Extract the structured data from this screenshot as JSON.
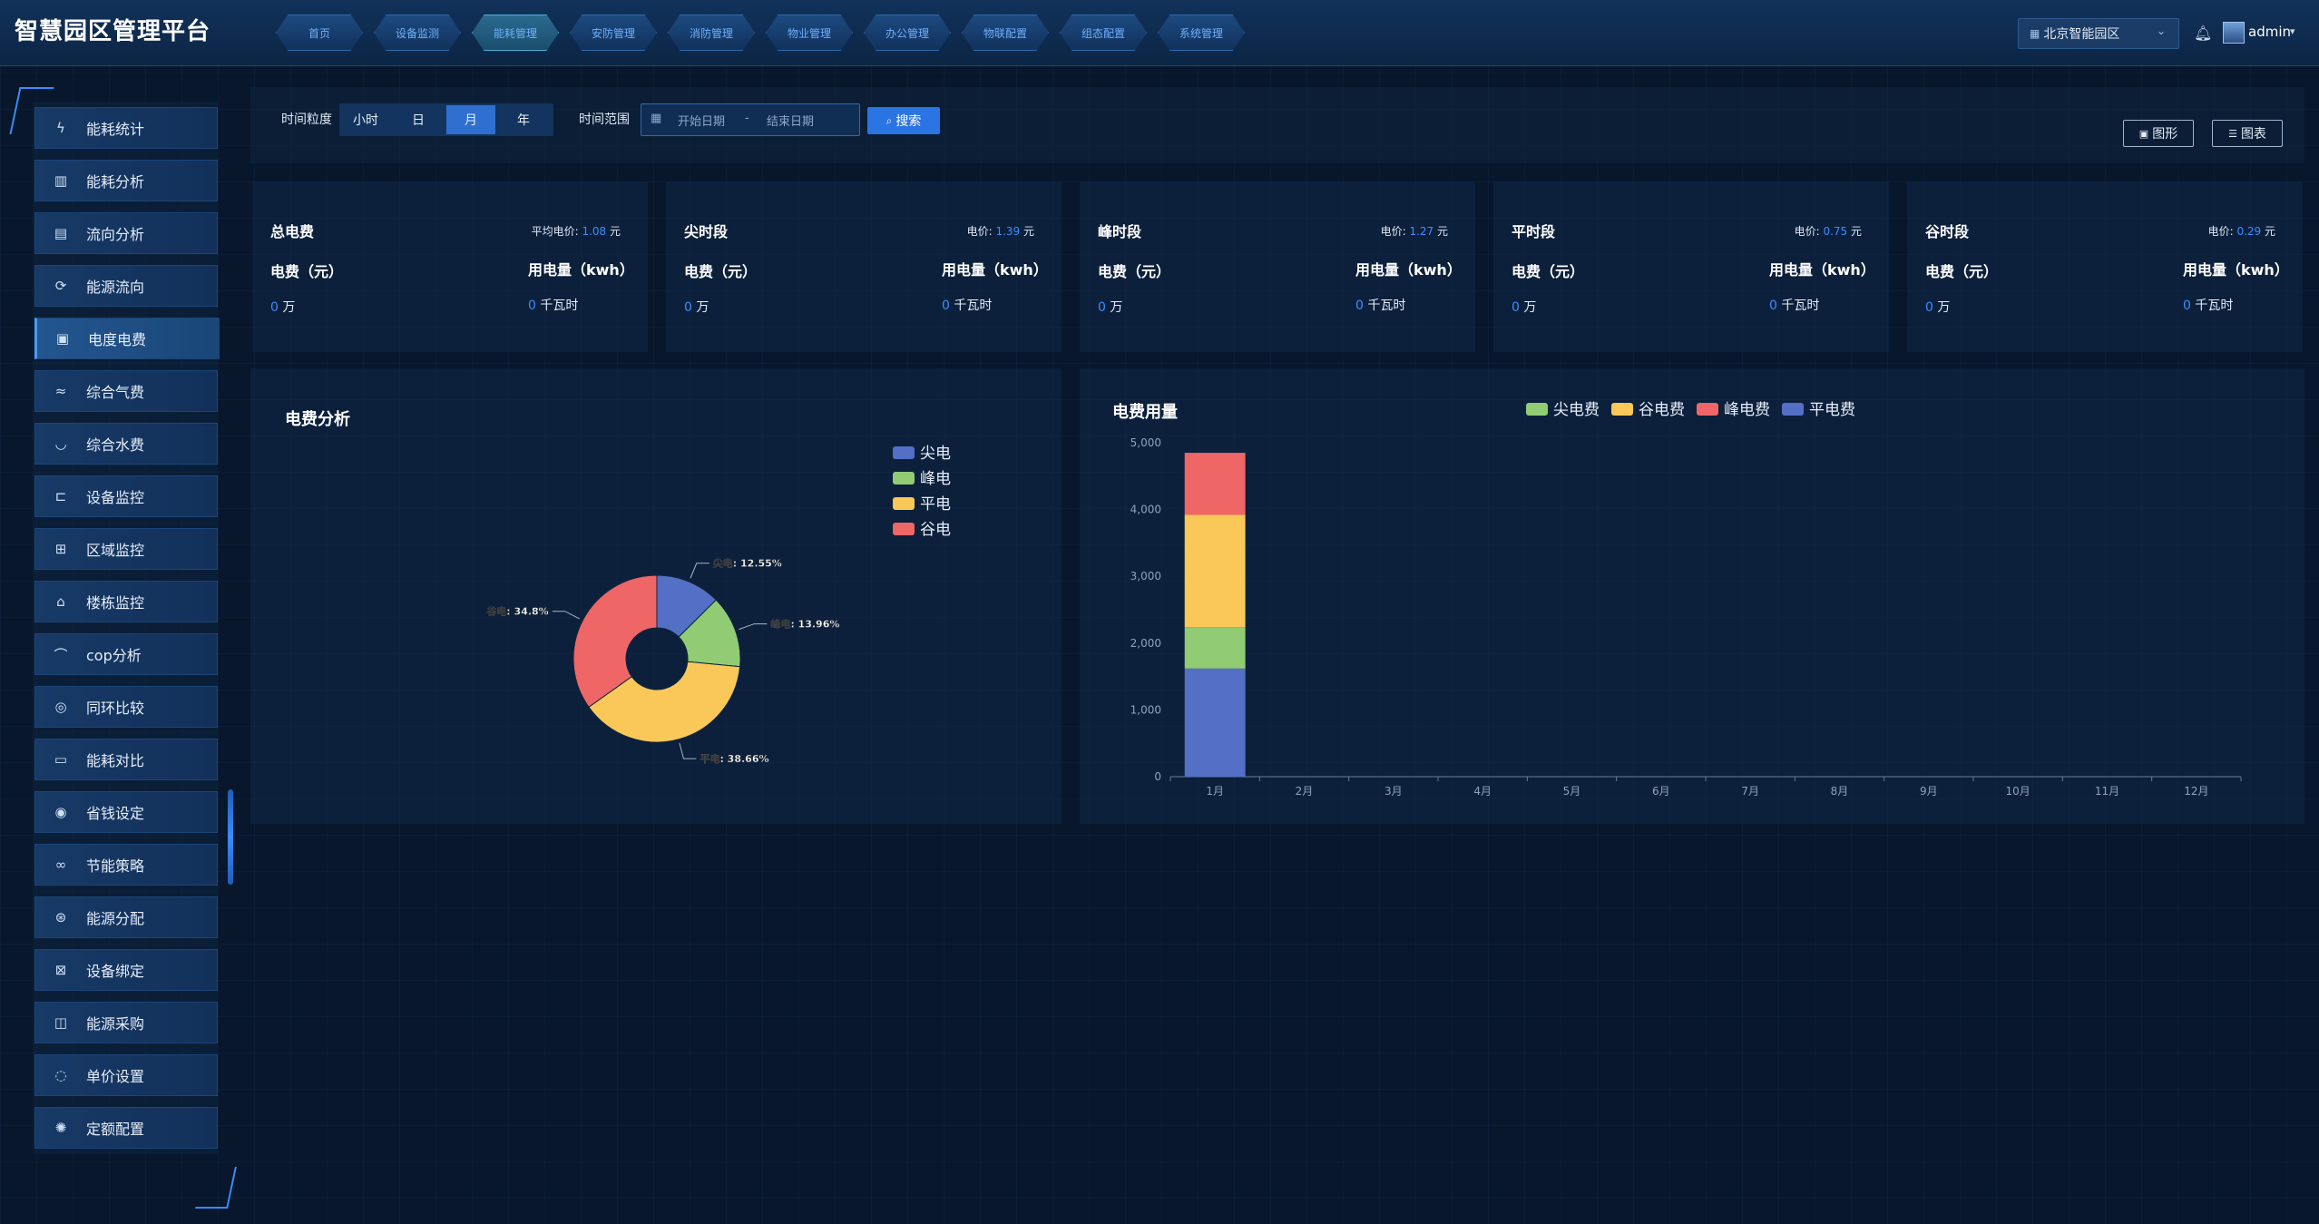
{
  "app": {
    "title": "智慧园区管理平台"
  },
  "nav": {
    "items": [
      {
        "label": "首页"
      },
      {
        "label": "设备监测"
      },
      {
        "label": "能耗管理"
      },
      {
        "label": "安防管理"
      },
      {
        "label": "消防管理"
      },
      {
        "label": "物业管理"
      },
      {
        "label": "办公管理"
      },
      {
        "label": "物联配置"
      },
      {
        "label": "组态配置"
      },
      {
        "label": "系统管理"
      }
    ],
    "active": "能耗管理"
  },
  "header": {
    "park": "北京智能园区",
    "user": "admin",
    "icons": [
      "building-icon",
      "chevron-down-icon",
      "bell-icon",
      "avatar"
    ]
  },
  "sidebar": {
    "items": [
      {
        "label": "能耗统计",
        "icon": "lightning-icon"
      },
      {
        "label": "能耗分析",
        "icon": "chart-icon"
      },
      {
        "label": "流向分析",
        "icon": "flow-icon"
      },
      {
        "label": "能源流向",
        "icon": "cycle-icon"
      },
      {
        "label": "电度电费",
        "icon": "bill-icon"
      },
      {
        "label": "综合气费",
        "icon": "gas-icon"
      },
      {
        "label": "综合水费",
        "icon": "water-icon"
      },
      {
        "label": "设备监控",
        "icon": "device-icon"
      },
      {
        "label": "区域监控",
        "icon": "region-icon"
      },
      {
        "label": "楼栋监控",
        "icon": "building-icon"
      },
      {
        "label": "cop分析",
        "icon": "curve-icon"
      },
      {
        "label": "同环比较",
        "icon": "compare-icon"
      },
      {
        "label": "能耗对比",
        "icon": "battery-icon"
      },
      {
        "label": "省钱设定",
        "icon": "coin-icon"
      },
      {
        "label": "节能策略",
        "icon": "link-icon"
      },
      {
        "label": "能源分配",
        "icon": "distribute-icon"
      },
      {
        "label": "设备绑定",
        "icon": "bind-icon"
      },
      {
        "label": "能源采购",
        "icon": "purchase-icon"
      },
      {
        "label": "单价设置",
        "icon": "price-icon"
      },
      {
        "label": "定额配置",
        "icon": "quota-icon"
      }
    ],
    "active": "电度电费"
  },
  "filter": {
    "granularity_label": "时间粒度",
    "granularity_options": [
      "小时",
      "日",
      "月",
      "年"
    ],
    "granularity_selected": "月",
    "range_label": "时间范围",
    "start_placeholder": "开始日期",
    "separator": "-",
    "end_placeholder": "结束日期",
    "search_label": "搜索",
    "view_graph_label": "图形",
    "view_table_label": "图表"
  },
  "cards": [
    {
      "title": "总电费",
      "price_label": "平均电价:",
      "price": "1.08",
      "price_unit": "元",
      "fee_label": "电费（元）",
      "usage_label": "用电量（kwh）",
      "fee_value": "0",
      "fee_unit": "万",
      "usage_value": "0",
      "usage_unit": "千瓦时"
    },
    {
      "title": "尖时段",
      "price_label": "电价:",
      "price": "1.39",
      "price_unit": "元",
      "fee_label": "电费（元）",
      "usage_label": "用电量（kwh）",
      "fee_value": "0",
      "fee_unit": "万",
      "usage_value": "0",
      "usage_unit": "千瓦时"
    },
    {
      "title": "峰时段",
      "price_label": "电价:",
      "price": "1.27",
      "price_unit": "元",
      "fee_label": "电费（元）",
      "usage_label": "用电量（kwh）",
      "fee_value": "0",
      "fee_unit": "万",
      "usage_value": "0",
      "usage_unit": "千瓦时"
    },
    {
      "title": "平时段",
      "price_label": "电价:",
      "price": "0.75",
      "price_unit": "元",
      "fee_label": "电费（元）",
      "usage_label": "用电量（kwh）",
      "fee_value": "0",
      "fee_unit": "万",
      "usage_value": "0",
      "usage_unit": "千瓦时"
    },
    {
      "title": "谷时段",
      "price_label": "电价:",
      "price": "0.29",
      "price_unit": "元",
      "fee_label": "电费（元）",
      "usage_label": "用电量（kwh）",
      "fee_value": "0",
      "fee_unit": "万",
      "usage_value": "0",
      "usage_unit": "千瓦时"
    }
  ],
  "colors": {
    "blue": "#5470c6",
    "green": "#91cc75",
    "yellow": "#fac858",
    "red": "#ee6666",
    "accent": "#3c8dff"
  },
  "chart_data": [
    {
      "type": "pie",
      "title": "电费分析",
      "legend": [
        "尖电",
        "峰电",
        "平电",
        "谷电"
      ],
      "legend_position": "top-right",
      "slices": [
        {
          "name": "尖电",
          "label": "尖电:",
          "value": 12.55,
          "display": "12.55%",
          "color": "#5470c6"
        },
        {
          "name": "峰电",
          "label": "峰电:",
          "value": 13.96,
          "display": "13.96%",
          "color": "#91cc75"
        },
        {
          "name": "平电",
          "label": "平电:",
          "value": 38.66,
          "display": "38.66%",
          "color": "#fac858"
        },
        {
          "name": "谷电",
          "label": "谷电:",
          "value": 34.83,
          "display": "34.8%",
          "color": "#ee6666"
        }
      ]
    },
    {
      "type": "bar",
      "stacked": true,
      "title": "电费用量",
      "legend": [
        "尖电费",
        "谷电费",
        "峰电费",
        "平电费"
      ],
      "legend_position": "top",
      "categories": [
        "1月",
        "2月",
        "3月",
        "4月",
        "5月",
        "6月",
        "7月",
        "8月",
        "9月",
        "10月",
        "11月",
        "12月"
      ],
      "ylim": [
        0,
        5000
      ],
      "yticks": [
        0,
        1000,
        2000,
        3000,
        4000,
        5000
      ],
      "ytick_labels": [
        "0",
        "1,000",
        "2,000",
        "3,000",
        "4,000",
        "5,000"
      ],
      "series": [
        {
          "name": "平电费",
          "color": "#5470c6",
          "values": [
            1620,
            0,
            0,
            0,
            0,
            0,
            0,
            0,
            0,
            0,
            0,
            0
          ]
        },
        {
          "name": "尖电费",
          "color": "#91cc75",
          "values": [
            620,
            0,
            0,
            0,
            0,
            0,
            0,
            0,
            0,
            0,
            0,
            0
          ]
        },
        {
          "name": "谷电费",
          "color": "#fac858",
          "values": [
            1680,
            0,
            0,
            0,
            0,
            0,
            0,
            0,
            0,
            0,
            0,
            0
          ]
        },
        {
          "name": "峰电费",
          "color": "#ee6666",
          "values": [
            930,
            0,
            0,
            0,
            0,
            0,
            0,
            0,
            0,
            0,
            0,
            0
          ]
        }
      ],
      "grid": false
    }
  ]
}
